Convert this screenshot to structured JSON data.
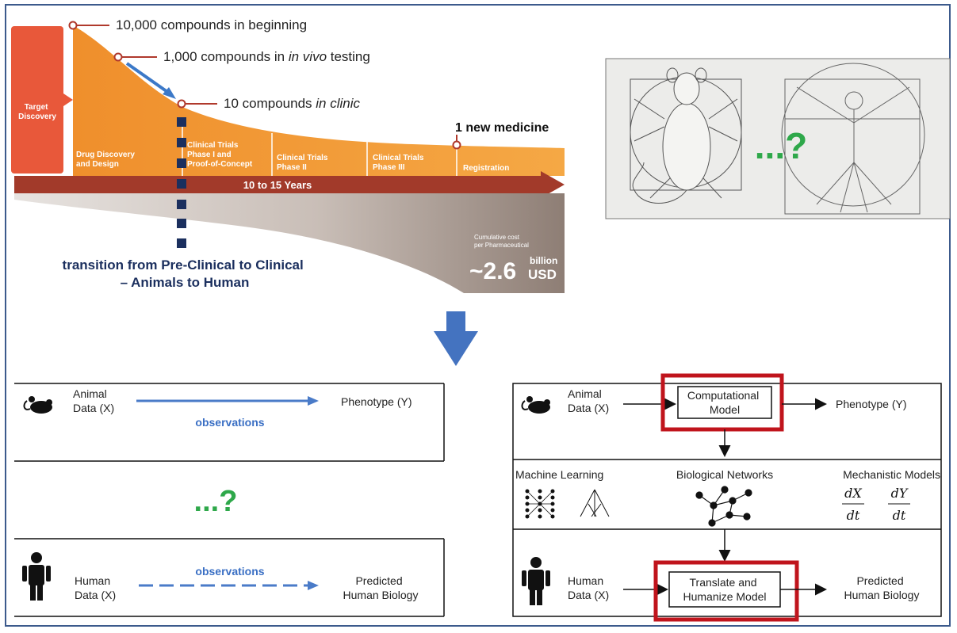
{
  "pipeline": {
    "target_discovery": [
      "Target",
      "Discovery"
    ],
    "stage_drug": [
      "Drug Discovery",
      "and Design"
    ],
    "stage_clin1": [
      "Clinical Trials",
      "Phase I and",
      "Proof-of-Concept"
    ],
    "stage_clin2": [
      "Clinical Trials",
      "Phase II"
    ],
    "stage_clin3": [
      "Clinical Trials",
      "Phase III"
    ],
    "stage_reg": "Registration",
    "timeline_label": "10 to 15 Years",
    "callout_10000": "10,000 compounds in beginning",
    "callout_1000_prefix": "1,000 compounds in ",
    "callout_1000_italic": "in vivo",
    "callout_1000_suffix": " testing",
    "callout_10_prefix": "10 compounds ",
    "callout_10_italic": "in clinic",
    "new_medicine": "1 new medicine",
    "transition_line1": "transition from Pre-Clinical to Clinical",
    "transition_line2": "– Animals to Human",
    "cost_label_1": "Cumulative cost",
    "cost_label_2": "per Pharmaceutical",
    "cost_value": "~2.6",
    "cost_unit_1": "billion",
    "cost_unit_2": "USD"
  },
  "vitruvian": {
    "question": "...?"
  },
  "left_panel": {
    "animal_label_1": "Animal",
    "animal_label_2": "Data (X)",
    "observations_top": "observations",
    "phenotype": "Phenotype (Y)",
    "question": "...?",
    "observations_bottom": "observations",
    "human_label_1": "Human",
    "human_label_2": "Data (X)",
    "predicted_1": "Predicted",
    "predicted_2": "Human Biology"
  },
  "right_panel": {
    "animal_label_1": "Animal",
    "animal_label_2": "Data (X)",
    "model_1": "Computational",
    "model_2": "Model",
    "phenotype": "Phenotype (Y)",
    "ml": "Machine Learning",
    "bio": "Biological Networks",
    "mech": "Mechanistic Models",
    "dx_num": "dX",
    "dx_den": "dt",
    "dy_num": "dY",
    "dy_den": "dt",
    "human_label_1": "Human",
    "human_label_2": "Data (X)",
    "translate_1": "Translate and",
    "translate_2": "Humanize Model",
    "predicted_1": "Predicted",
    "predicted_2": "Human Biology"
  },
  "colors": {
    "orange": "#f0922e",
    "red_orange": "#e8583a",
    "timeline": "#a23a2a",
    "navy": "#1b2f5e",
    "blue_arrow": "#4a7bc8",
    "green": "#2ea84a",
    "highlight_red": "#c0141c",
    "cost_gray": "#9a8c84"
  }
}
